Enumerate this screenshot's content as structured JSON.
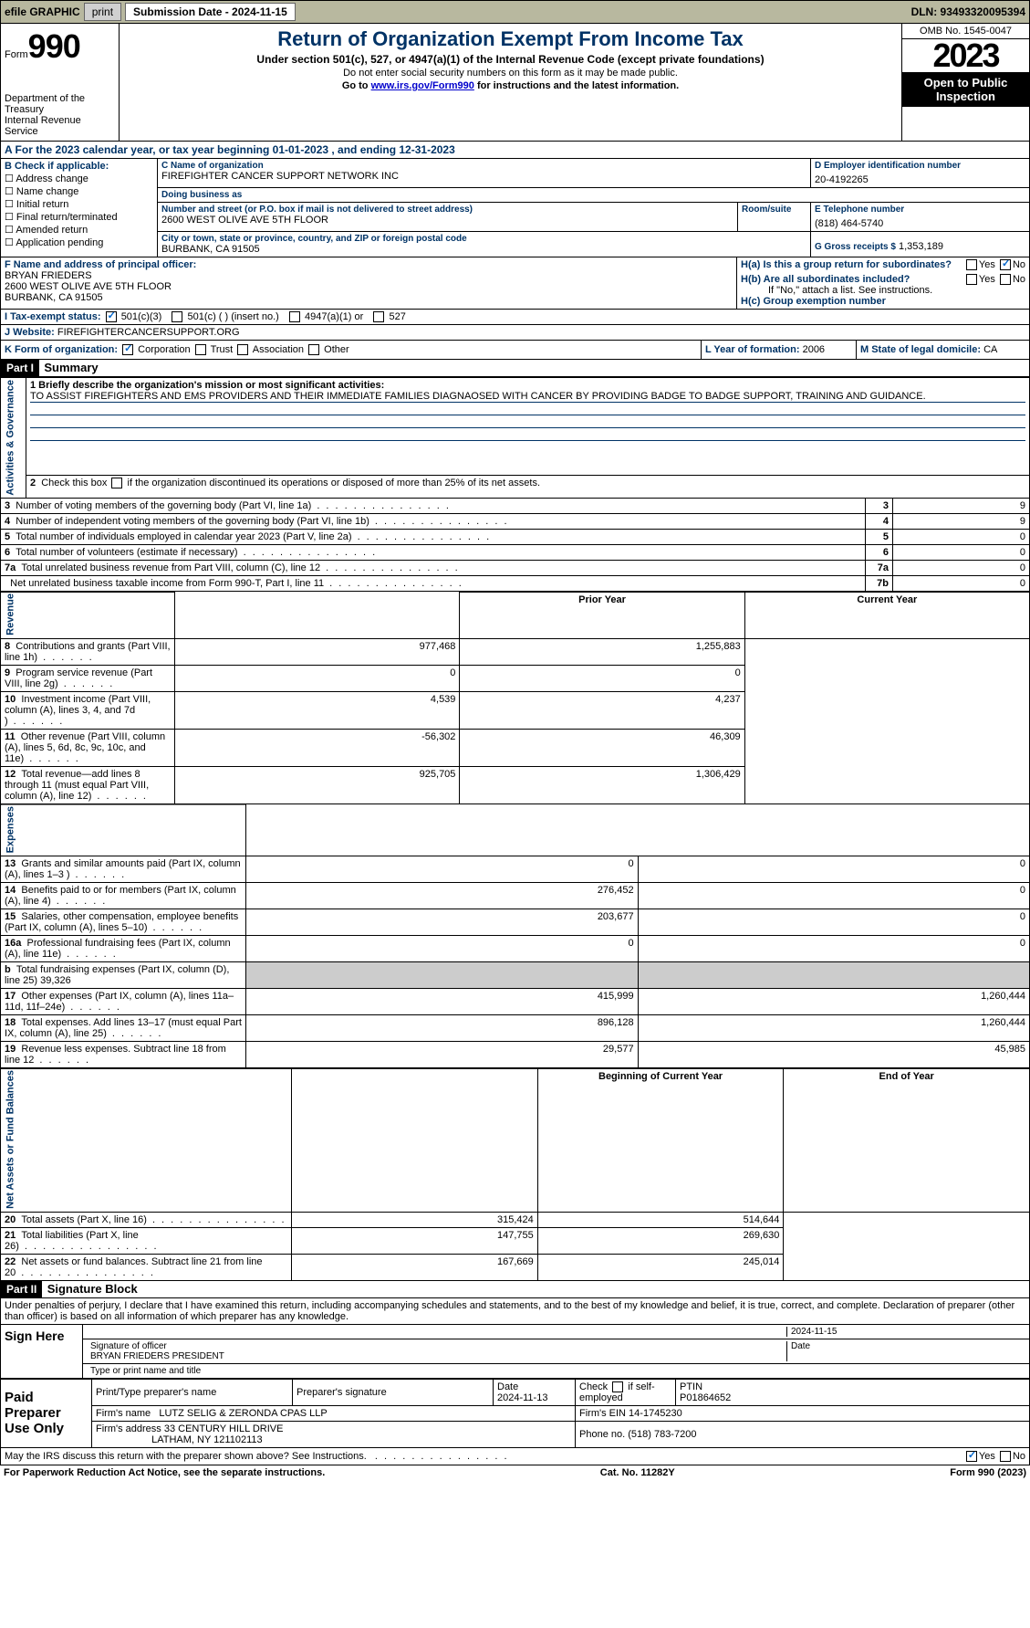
{
  "topbar": {
    "efile": "efile GRAPHIC",
    "print": "print",
    "subdate_lbl": "Submission Date - 2024-11-15",
    "dln": "DLN: 93493320095394"
  },
  "header": {
    "form_word": "Form",
    "form_no": "990",
    "dept": "Department of the Treasury",
    "irs": "Internal Revenue Service",
    "title": "Return of Organization Exempt From Income Tax",
    "sub1": "Under section 501(c), 527, or 4947(a)(1) of the Internal Revenue Code (except private foundations)",
    "sub2": "Do not enter social security numbers on this form as it may be made public.",
    "sub3": "Go to www.irs.gov/Form990 for instructions and the latest information.",
    "omb": "OMB No. 1545-0047",
    "year": "2023",
    "inspect": "Open to Public Inspection"
  },
  "rowA": {
    "text": "A  For the 2023 calendar year, or tax year beginning 01-01-2023    , and ending 12-31-2023"
  },
  "boxB": {
    "title": "B Check if applicable:",
    "items": [
      "Address change",
      "Name change",
      "Initial return",
      "Final return/terminated",
      "Amended return",
      "Application pending"
    ]
  },
  "boxC": {
    "name_lbl": "C Name of organization",
    "name": "FIREFIGHTER CANCER SUPPORT NETWORK INC",
    "dba_lbl": "Doing business as",
    "dba": "",
    "street_lbl": "Number and street (or P.O. box if mail is not delivered to street address)",
    "street": "2600 WEST OLIVE AVE 5TH FLOOR",
    "room_lbl": "Room/suite",
    "room": "",
    "city_lbl": "City or town, state or province, country, and ZIP or foreign postal code",
    "city": "BURBANK, CA  91505"
  },
  "boxD": {
    "lbl": "D Employer identification number",
    "val": "20-4192265"
  },
  "boxE": {
    "lbl": "E Telephone number",
    "val": "(818) 464-5740"
  },
  "boxG": {
    "lbl": "G Gross receipts $",
    "val": "1,353,189"
  },
  "boxF": {
    "lbl": "F  Name and address of principal officer:",
    "name": "BRYAN FRIEDERS",
    "addr1": "2600 WEST OLIVE AVE 5TH FLOOR",
    "addr2": "BURBANK, CA  91505"
  },
  "boxH": {
    "a": "H(a)  Is this a group return for subordinates?",
    "b": "H(b)  Are all subordinates included?",
    "b2": "If \"No,\" attach a list. See instructions.",
    "c": "H(c)  Group exemption number ",
    "yes": "Yes",
    "no": "No"
  },
  "boxI": {
    "lbl": "I      Tax-exempt status:",
    "opt1": "501(c)(3)",
    "opt2": "501(c) (  ) (insert no.)",
    "opt3": "4947(a)(1) or",
    "opt4": "527"
  },
  "boxJ": {
    "lbl": "J     Website: ",
    "val": "FIREFIGHTERCANCERSUPPORT.ORG"
  },
  "boxK": {
    "lbl": "K Form of organization:",
    "opt1": "Corporation",
    "opt2": "Trust",
    "opt3": "Association",
    "opt4": "Other"
  },
  "boxL": {
    "lbl": "L Year of formation:",
    "val": "2006"
  },
  "boxM": {
    "lbl": "M State of legal domicile:",
    "val": "CA"
  },
  "part1": {
    "hdr": "Part I",
    "title": "Summary",
    "line1_lbl": "1  Briefly describe the organization's mission or most significant activities:",
    "line1_val": "TO ASSIST FIREFIGHTERS AND EMS PROVIDERS AND THEIR IMMEDIATE FAMILIES DIAGNAOSED WITH CANCER BY PROVIDING BADGE TO BADGE SUPPORT, TRAINING AND GUIDANCE.",
    "line2": "2    Check this box      if the organization discontinued its operations or disposed of more than 25% of its net assets.",
    "sideA": "Activities & Governance",
    "sideR": "Revenue",
    "sideE": "Expenses",
    "sideN": "Net Assets or Fund Balances",
    "rows_gov": [
      {
        "n": "3",
        "t": "Number of voting members of the governing body (Part VI, line 1a)",
        "k": "3",
        "v": "9"
      },
      {
        "n": "4",
        "t": "Number of independent voting members of the governing body (Part VI, line 1b)",
        "k": "4",
        "v": "9"
      },
      {
        "n": "5",
        "t": "Total number of individuals employed in calendar year 2023 (Part V, line 2a)",
        "k": "5",
        "v": "0"
      },
      {
        "n": "6",
        "t": "Total number of volunteers (estimate if necessary)",
        "k": "6",
        "v": "0"
      },
      {
        "n": "7a",
        "t": "Total unrelated business revenue from Part VIII, column (C), line 12",
        "k": "7a",
        "v": "0"
      },
      {
        "n": "",
        "t": "Net unrelated business taxable income from Form 990-T, Part I, line 11",
        "k": "7b",
        "v": "0"
      }
    ],
    "prior_hdr": "Prior Year",
    "curr_hdr": "Current Year",
    "rows_rev": [
      {
        "n": "8",
        "t": "Contributions and grants (Part VIII, line 1h)",
        "p": "977,468",
        "c": "1,255,883"
      },
      {
        "n": "9",
        "t": "Program service revenue (Part VIII, line 2g)",
        "p": "0",
        "c": "0"
      },
      {
        "n": "10",
        "t": "Investment income (Part VIII, column (A), lines 3, 4, and 7d )",
        "p": "4,539",
        "c": "4,237"
      },
      {
        "n": "11",
        "t": "Other revenue (Part VIII, column (A), lines 5, 6d, 8c, 9c, 10c, and 11e)",
        "p": "-56,302",
        "c": "46,309"
      },
      {
        "n": "12",
        "t": "Total revenue—add lines 8 through 11 (must equal Part VIII, column (A), line 12)",
        "p": "925,705",
        "c": "1,306,429"
      }
    ],
    "rows_exp": [
      {
        "n": "13",
        "t": "Grants and similar amounts paid (Part IX, column (A), lines 1–3 )",
        "p": "0",
        "c": "0"
      },
      {
        "n": "14",
        "t": "Benefits paid to or for members (Part IX, column (A), line 4)",
        "p": "276,452",
        "c": "0"
      },
      {
        "n": "15",
        "t": "Salaries, other compensation, employee benefits (Part IX, column (A), lines 5–10)",
        "p": "203,677",
        "c": "0"
      },
      {
        "n": "16a",
        "t": "Professional fundraising fees (Part IX, column (A), line 11e)",
        "p": "0",
        "c": "0"
      },
      {
        "n": "b",
        "t": "Total fundraising expenses (Part IX, column (D), line 25) 39,326",
        "p": "",
        "c": "",
        "gray": true
      },
      {
        "n": "17",
        "t": "Other expenses (Part IX, column (A), lines 11a–11d, 11f–24e)",
        "p": "415,999",
        "c": "1,260,444"
      },
      {
        "n": "18",
        "t": "Total expenses. Add lines 13–17 (must equal Part IX, column (A), line 25)",
        "p": "896,128",
        "c": "1,260,444"
      },
      {
        "n": "19",
        "t": "Revenue less expenses. Subtract line 18 from line 12",
        "p": "29,577",
        "c": "45,985"
      }
    ],
    "begin_hdr": "Beginning of Current Year",
    "end_hdr": "End of Year",
    "rows_net": [
      {
        "n": "20",
        "t": "Total assets (Part X, line 16)",
        "p": "315,424",
        "c": "514,644"
      },
      {
        "n": "21",
        "t": "Total liabilities (Part X, line 26)",
        "p": "147,755",
        "c": "269,630"
      },
      {
        "n": "22",
        "t": "Net assets or fund balances. Subtract line 21 from line 20",
        "p": "167,669",
        "c": "245,014"
      }
    ]
  },
  "part2": {
    "hdr": "Part II",
    "title": "Signature Block",
    "decl": "Under penalties of perjury, I declare that I have examined this return, including accompanying schedules and statements, and to the best of my knowledge and belief, it is true, correct, and complete. Declaration of preparer (other than officer) is based on all information of which preparer has any knowledge.",
    "sign_here": "Sign Here",
    "sig_date": "2024-11-15",
    "sig_lbl": "Signature of officer",
    "sig_name": "BRYAN FRIEDERS PRESIDENT",
    "sig_type": "Type or print name and title",
    "date_lbl": "Date",
    "paid": "Paid Preparer Use Only",
    "prep_name_lbl": "Print/Type preparer's name",
    "prep_sig_lbl": "Preparer's signature",
    "prep_date_lbl": "Date",
    "prep_date": "2024-11-13",
    "self_lbl": "Check        if self-employed",
    "ptin_lbl": "PTIN",
    "ptin": "P01864652",
    "firm_name_lbl": "Firm's name   ",
    "firm_name": "LUTZ SELIG & ZERONDA CPAS LLP",
    "firm_ein_lbl": "Firm's EIN  ",
    "firm_ein": "14-1745230",
    "firm_addr_lbl": "Firm's address ",
    "firm_addr": "33 CENTURY HILL DRIVE",
    "firm_city": "LATHAM, NY  121102113",
    "phone_lbl": "Phone no.",
    "phone": "(518) 783-7200",
    "discuss": "May the IRS discuss this return with the preparer shown above? See Instructions."
  },
  "footer": {
    "left": "For Paperwork Reduction Act Notice, see the separate instructions.",
    "mid": "Cat. No. 11282Y",
    "right": "Form 990 (2023)"
  }
}
